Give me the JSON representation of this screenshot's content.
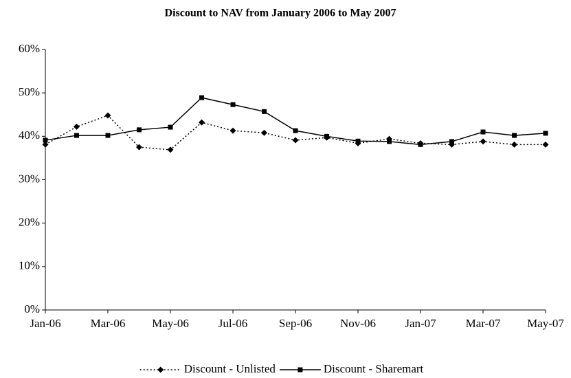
{
  "chart_data": {
    "type": "line",
    "title": "Discount to NAV from January 2006 to May 2007",
    "categories": [
      "Jan-06",
      null,
      "Mar-06",
      null,
      "May-06",
      null,
      "Jul-06",
      null,
      "Sep-06",
      null,
      "Nov-06",
      null,
      "Jan-07",
      null,
      "Mar-07",
      null,
      "May-07"
    ],
    "series": [
      {
        "name": "Discount - Unlisted",
        "color": "#000000",
        "dash": "dotted",
        "marker": "diamond",
        "values": [
          38.1,
          42.2,
          44.8,
          37.5,
          36.9,
          43.2,
          41.3,
          40.8,
          39.1,
          39.7,
          38.4,
          39.4,
          38.4,
          38.1,
          38.8,
          38.1,
          38.1
        ]
      },
      {
        "name": "Discount - Sharemart",
        "color": "#000000",
        "dash": "solid",
        "marker": "square",
        "values": [
          39.1,
          40.2,
          40.2,
          41.5,
          42.1,
          48.9,
          47.3,
          45.7,
          41.3,
          40.0,
          38.9,
          38.8,
          38.1,
          38.8,
          41.0,
          40.2,
          40.7
        ]
      }
    ],
    "ylim": [
      0,
      60
    ],
    "yticks": [
      {
        "value": 0,
        "label": "0%"
      },
      {
        "value": 10,
        "label": "10%"
      },
      {
        "value": 20,
        "label": "20%"
      },
      {
        "value": 30,
        "label": "30%"
      },
      {
        "value": 40,
        "label": "40%"
      },
      {
        "value": 50,
        "label": "50%"
      },
      {
        "value": 60,
        "label": "60%"
      }
    ],
    "grid": false,
    "legend": "bottom"
  }
}
